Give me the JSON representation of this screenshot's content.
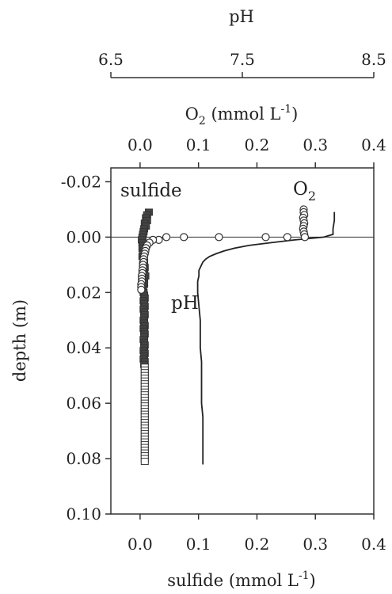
{
  "chart_data": {
    "type": "scatter",
    "axes": {
      "pH": {
        "label": "pH",
        "range": [
          6.5,
          8.5
        ],
        "ticks": [
          6.5,
          7.5,
          8.5
        ],
        "tick_labels": [
          "6.5",
          "7.5",
          "8.5"
        ]
      },
      "o2": {
        "label": "O",
        "label_sub": "2",
        "label_rest": " (mmol L",
        "label_sup": "-1",
        "label_end": ")",
        "range": [
          -0.05,
          0.4
        ],
        "ticks": [
          0.0,
          0.1,
          0.2,
          0.3,
          0.4
        ],
        "tick_labels": [
          "0.0",
          "0.1",
          "0.2",
          "0.3",
          "0.4"
        ]
      },
      "sulfide": {
        "label": "sulfide (mmol L",
        "label_sup": "-1",
        "label_end": ")",
        "range": [
          -0.05,
          0.4
        ],
        "ticks": [
          0.0,
          0.1,
          0.2,
          0.3,
          0.4
        ],
        "tick_labels": [
          "0.0",
          "0.1",
          "0.2",
          "0.3",
          "0.4"
        ]
      },
      "depth": {
        "label": "depth (m)",
        "range": [
          -0.025,
          0.1
        ],
        "ticks": [
          -0.02,
          0.0,
          0.02,
          0.04,
          0.06,
          0.08,
          0.1
        ],
        "tick_labels": [
          "-0.02",
          "0.00",
          "0.02",
          "0.04",
          "0.06",
          "0.08",
          "0.10"
        ],
        "inverted": true
      }
    },
    "series": [
      {
        "name": "sulfide",
        "marker": "square",
        "depth": [
          -0.009,
          -0.008,
          -0.007,
          -0.006,
          -0.005,
          -0.004,
          -0.003,
          -0.002,
          -0.001,
          0.0,
          0.001,
          0.002,
          0.003,
          0.004,
          0.005,
          0.006,
          0.007,
          0.008,
          0.009,
          0.01,
          0.011,
          0.012,
          0.013,
          0.014,
          0.015,
          0.016,
          0.017,
          0.018,
          0.019,
          0.02,
          0.021,
          0.022,
          0.023,
          0.024,
          0.025,
          0.026,
          0.027,
          0.028,
          0.029,
          0.03,
          0.031,
          0.032,
          0.033,
          0.034,
          0.035,
          0.036,
          0.037,
          0.038,
          0.039,
          0.04,
          0.041,
          0.042,
          0.043,
          0.044,
          0.045,
          0.046,
          0.047,
          0.048,
          0.049,
          0.05,
          0.051,
          0.052,
          0.053,
          0.054,
          0.055,
          0.056,
          0.057,
          0.058,
          0.059,
          0.06,
          0.061,
          0.062,
          0.063,
          0.064,
          0.065,
          0.066,
          0.067,
          0.068,
          0.069,
          0.07,
          0.071,
          0.072,
          0.073,
          0.074,
          0.075,
          0.076,
          0.077,
          0.078,
          0.079,
          0.08,
          0.081
        ],
        "values": [
          0.015,
          0.012,
          0.01,
          0.012,
          0.008,
          0.01,
          0.007,
          0.006,
          0.005,
          0.004,
          0.003,
          0.004,
          0.005,
          0.004,
          0.006,
          0.005,
          0.004,
          0.006,
          0.007,
          0.005,
          0.008,
          0.007,
          0.006,
          0.009,
          0.007,
          0.006,
          0.007,
          0.005,
          0.004,
          0.006,
          0.007,
          0.008,
          0.006,
          0.007,
          0.008,
          0.006,
          0.007,
          0.008,
          0.007,
          0.006,
          0.007,
          0.008,
          0.006,
          0.007,
          0.008,
          0.007,
          0.006,
          0.007,
          0.008,
          0.007,
          0.006,
          0.008,
          0.007,
          0.006,
          0.008,
          0.007,
          0.008,
          0.008,
          0.008,
          0.008,
          0.008,
          0.008,
          0.008,
          0.008,
          0.008,
          0.008,
          0.008,
          0.008,
          0.008,
          0.008,
          0.008,
          0.008,
          0.008,
          0.008,
          0.008,
          0.008,
          0.008,
          0.008,
          0.008,
          0.008,
          0.008,
          0.008,
          0.008,
          0.008,
          0.008,
          0.008,
          0.008,
          0.008,
          0.008,
          0.008,
          0.008
        ]
      },
      {
        "name": "O2",
        "marker": "circle",
        "depth": [
          -0.01,
          -0.009,
          -0.008,
          -0.007,
          -0.006,
          -0.005,
          -0.004,
          -0.003,
          -0.002,
          -0.001,
          0.0,
          0.0,
          0.0,
          0.0,
          0.0,
          0.0,
          0.001,
          0.001,
          0.002,
          0.003,
          0.004,
          0.005,
          0.006,
          0.007,
          0.008,
          0.009,
          0.01,
          0.011,
          0.012,
          0.013,
          0.014,
          0.015,
          0.016,
          0.017,
          0.018,
          0.019
        ],
        "values": [
          0.28,
          0.28,
          0.281,
          0.279,
          0.28,
          0.281,
          0.28,
          0.279,
          0.28,
          0.281,
          0.282,
          0.252,
          0.215,
          0.135,
          0.075,
          0.045,
          0.032,
          0.022,
          0.016,
          0.012,
          0.01,
          0.009,
          0.008,
          0.007,
          0.006,
          0.006,
          0.005,
          0.005,
          0.004,
          0.004,
          0.003,
          0.003,
          0.003,
          0.002,
          0.002,
          0.002
        ]
      },
      {
        "name": "pH",
        "marker": "line",
        "depth": [
          -0.009,
          -0.006,
          -0.003,
          -0.001,
          0.0,
          0.001,
          0.002,
          0.003,
          0.004,
          0.005,
          0.006,
          0.007,
          0.008,
          0.009,
          0.01,
          0.012,
          0.014,
          0.016,
          0.02,
          0.025,
          0.03,
          0.035,
          0.04,
          0.045,
          0.05,
          0.055,
          0.06,
          0.065,
          0.07,
          0.075,
          0.08,
          0.082
        ],
        "values": [
          8.2,
          8.2,
          8.19,
          8.19,
          8.12,
          7.9,
          7.72,
          7.55,
          7.44,
          7.36,
          7.3,
          7.25,
          7.22,
          7.2,
          7.19,
          7.17,
          7.17,
          7.16,
          7.16,
          7.17,
          7.18,
          7.18,
          7.18,
          7.19,
          7.19,
          7.19,
          7.19,
          7.2,
          7.2,
          7.2,
          7.2,
          7.2
        ]
      }
    ],
    "series_labels": {
      "sulfide": "sulfide",
      "o2_main": "O",
      "o2_sub": "2",
      "pH": "pH"
    },
    "reference_line_depth": 0.0,
    "grid": false
  }
}
